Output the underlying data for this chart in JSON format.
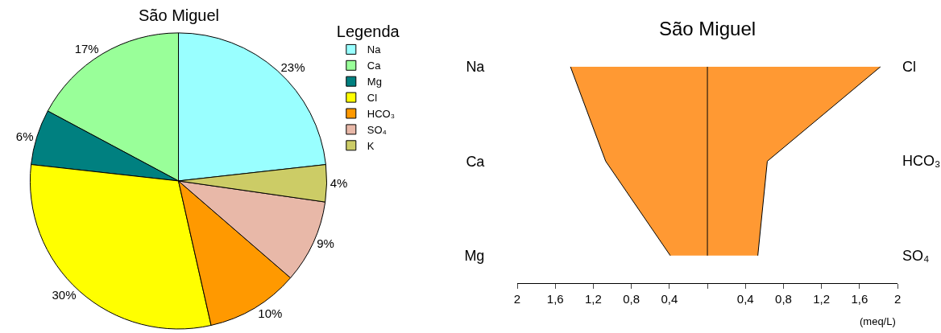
{
  "chart_data": [
    {
      "type": "pie",
      "title": "São Miguel",
      "legend_title": "Legenda",
      "legend": "top right",
      "categories": [
        "Na",
        "Ca",
        "Mg",
        "Cl",
        "HCO₃",
        "SO₄",
        "K"
      ],
      "values": [
        23,
        17,
        6,
        30,
        10,
        9,
        4
      ],
      "value_labels": [
        "23%",
        "17%",
        "6%",
        "30%",
        "10%",
        "9%",
        "4%"
      ],
      "colors": [
        "#99ffff",
        "#99ff99",
        "#008080",
        "#ffff00",
        "#ff9900",
        "#e8b8a8",
        "#cccc66"
      ]
    },
    {
      "type": "area",
      "title": "São Miguel",
      "orientation": "horizontal",
      "xlabel": "(meq/L)",
      "categories": [
        "Na",
        "Ca",
        "Mg"
      ],
      "y2_categories": [
        "Cl",
        "HCO₃",
        "SO₄"
      ],
      "series": [
        {
          "color": "#ff9933",
          "values": [
            -1.44,
            -1.07,
            -0.39
          ]
        },
        {
          "color": "#ff9933",
          "values": [
            1.82,
            0.63,
            0.53
          ]
        }
      ],
      "xlim": [
        -2,
        2
      ],
      "xticks": [
        {
          "value": -2,
          "label": "2"
        },
        {
          "value": -1.6,
          "label": "1,6"
        },
        {
          "value": -1.2,
          "label": "1,2"
        },
        {
          "value": -0.8,
          "label": "0,8"
        },
        {
          "value": -0.4,
          "label": "0,4"
        },
        {
          "value": 0,
          "label": null
        },
        {
          "value": 0.4,
          "label": "0,4"
        },
        {
          "value": 0.8,
          "label": "0,8"
        },
        {
          "value": 1.2,
          "label": "1,2"
        },
        {
          "value": 1.6,
          "label": "1,6"
        },
        {
          "value": 2,
          "label": "2"
        }
      ],
      "ref_lines": [
        {
          "axis": "x",
          "value": 0,
          "color": "#000000"
        }
      ]
    }
  ]
}
